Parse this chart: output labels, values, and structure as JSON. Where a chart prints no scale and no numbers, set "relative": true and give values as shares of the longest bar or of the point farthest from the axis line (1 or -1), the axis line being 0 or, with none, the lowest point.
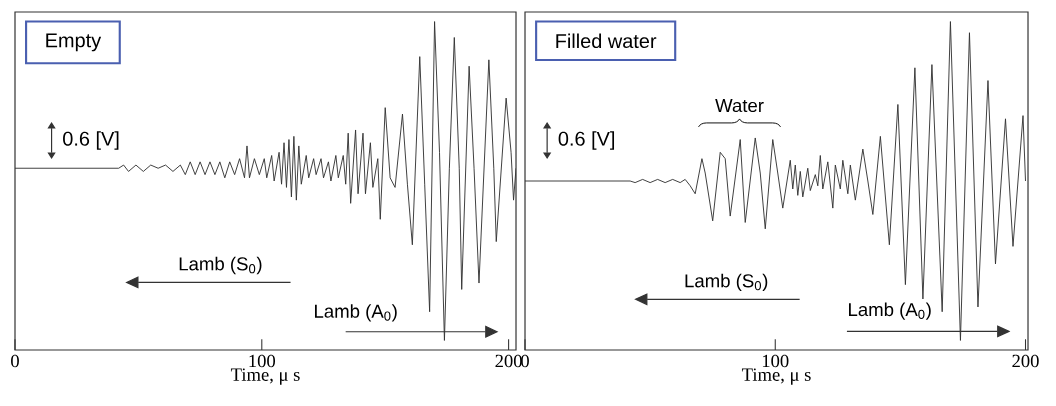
{
  "chart_data": [
    {
      "type": "line",
      "title": "Empty",
      "xlabel": "Time, μ s",
      "relative": true,
      "xlim": [
        0,
        203
      ],
      "xticks": [
        0,
        100,
        200
      ],
      "annotations": [
        "0.6 [V]",
        "Lamb (S$_{0}$)",
        "Lamb (A$_{0}$)"
      ],
      "x": [
        0,
        42,
        44,
        46,
        49,
        52,
        55,
        58,
        61,
        64,
        67,
        69,
        71,
        73,
        75,
        77,
        79,
        81,
        83,
        85,
        87,
        89,
        91,
        93,
        94,
        95,
        97,
        99,
        101,
        102,
        104,
        105,
        107,
        108,
        109,
        110,
        111,
        112,
        113,
        114,
        115,
        116,
        118,
        119,
        121,
        122,
        124,
        125,
        127,
        128,
        130,
        131,
        133,
        134,
        135,
        136,
        138,
        139,
        141,
        142,
        144,
        145,
        147,
        148,
        150,
        152,
        154,
        157,
        159,
        161,
        164,
        166,
        168,
        170,
        172,
        174,
        176,
        178,
        180,
        181,
        184,
        186,
        188,
        192,
        194,
        195,
        199,
        201,
        202,
        203
      ],
      "series": [
        {
          "color": "#333333",
          "values": [
            0.54,
            0.54,
            0.55,
            0.53,
            0.55,
            0.53,
            0.55,
            0.54,
            0.55,
            0.53,
            0.55,
            0.52,
            0.56,
            0.52,
            0.56,
            0.52,
            0.56,
            0.52,
            0.56,
            0.51,
            0.56,
            0.52,
            0.57,
            0.51,
            0.61,
            0.51,
            0.57,
            0.52,
            0.57,
            0.51,
            0.58,
            0.5,
            0.59,
            0.49,
            0.62,
            0.48,
            0.63,
            0.45,
            0.64,
            0.44,
            0.61,
            0.49,
            0.58,
            0.51,
            0.57,
            0.52,
            0.57,
            0.51,
            0.56,
            0.5,
            0.58,
            0.51,
            0.58,
            0.49,
            0.65,
            0.43,
            0.66,
            0.46,
            0.65,
            0.46,
            0.62,
            0.48,
            0.57,
            0.38,
            0.73,
            0.51,
            0.48,
            0.71,
            0.49,
            0.3,
            0.89,
            0.49,
            0.09,
            1,
            0.59,
            0,
            0.54,
            0.95,
            0.54,
            0.16,
            0.86,
            0.54,
            0.18,
            0.88,
            0.54,
            0.31,
            0.76,
            0.59,
            0.44,
            0.54
          ]
        }
      ]
    },
    {
      "type": "line",
      "title": "Filled water",
      "xlabel": "Time, μ s",
      "relative": true,
      "xlim": [
        0,
        201
      ],
      "xticks": [
        0,
        100,
        200
      ],
      "annotations": [
        "0.6 [V]",
        "Lamb (S$_{0}$)",
        "Lamb (A$_{0}$)",
        "Water"
      ],
      "x": [
        0,
        42,
        44,
        47,
        50,
        53,
        56,
        59,
        62,
        64,
        66,
        68,
        70.7,
        72,
        75,
        78,
        80,
        82,
        86,
        88,
        92,
        94,
        96,
        99,
        101,
        103,
        106,
        107,
        108,
        109,
        110,
        111,
        113,
        114,
        116,
        117,
        118,
        119,
        121,
        123,
        124,
        126,
        127,
        129,
        130,
        132,
        135,
        137,
        139,
        142,
        145.6,
        149,
        152,
        155.8,
        159,
        162.6,
        166.7,
        170,
        174,
        177.6,
        181,
        185,
        188,
        192,
        195,
        199,
        200
      ],
      "series": [
        {
          "color": "#333333",
          "values": [
            0.5,
            0.5,
            0.495,
            0.505,
            0.495,
            0.505,
            0.495,
            0.505,
            0.495,
            0.505,
            0.485,
            0.46,
            0.57,
            0.525,
            0.375,
            0.59,
            0.57,
            0.39,
            0.63,
            0.37,
            0.635,
            0.525,
            0.35,
            0.63,
            0.525,
            0.415,
            0.565,
            0.475,
            0.55,
            0.455,
            0.53,
            0.45,
            0.54,
            0.47,
            0.52,
            0.485,
            0.58,
            0.475,
            0.56,
            0.415,
            0.55,
            0.475,
            0.565,
            0.46,
            0.55,
            0.44,
            0.6,
            0.5,
            0.395,
            0.64,
            0.3,
            0.74,
            0.175,
            0.855,
            0.13,
            0.865,
            0.09,
            1,
            0,
            0.965,
            0.105,
            0.815,
            0.24,
            0.695,
            0.295,
            0.705,
            0.5
          ]
        }
      ]
    }
  ]
}
